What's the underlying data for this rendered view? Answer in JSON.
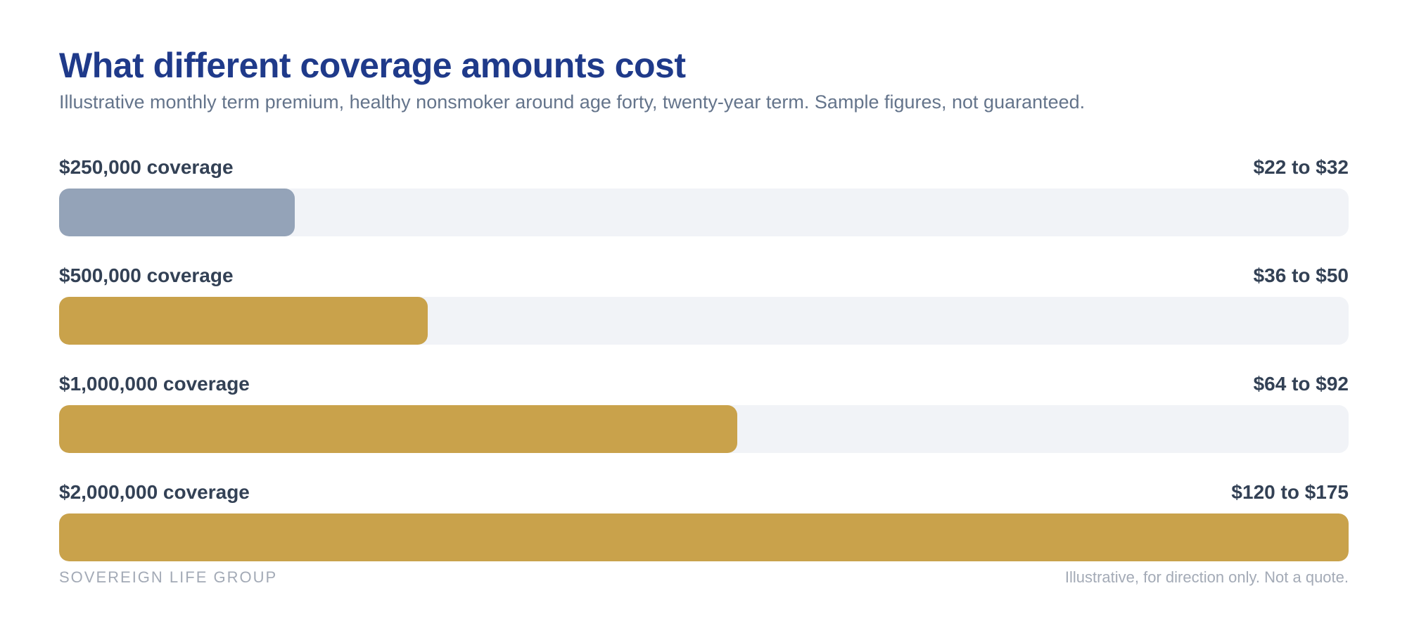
{
  "title": "What different coverage amounts cost",
  "subtitle": "Illustrative monthly term premium, healthy nonsmoker around age forty, twenty-year term. Sample figures, not guaranteed.",
  "footer": {
    "brand": "SOVEREIGN LIFE GROUP",
    "note": "Illustrative, for direction only. Not a quote."
  },
  "colors": {
    "highlight": "#94a3b8",
    "default": "#c9a24b",
    "track": "#f1f3f7"
  },
  "chart_data": {
    "type": "bar",
    "orientation": "horizontal",
    "title": "What different coverage amounts cost",
    "subtitle": "Illustrative monthly term premium, healthy nonsmoker around age forty, twenty-year term. Sample figures, not guaranteed.",
    "xlim": [
      0,
      175
    ],
    "grid": false,
    "categories": [
      "$250,000 coverage",
      "$500,000 coverage",
      "$1,000,000 coverage",
      "$2,000,000 coverage"
    ],
    "range_labels": [
      "$22 to $32",
      "$36 to $50",
      "$64 to $92",
      "$120 to $175"
    ],
    "low": [
      22,
      36,
      64,
      120
    ],
    "high": [
      32,
      50,
      92,
      175
    ],
    "values": [
      32,
      50,
      92,
      175
    ],
    "bar_colors": [
      "#94a3b8",
      "#c9a24b",
      "#c9a24b",
      "#c9a24b"
    ]
  }
}
